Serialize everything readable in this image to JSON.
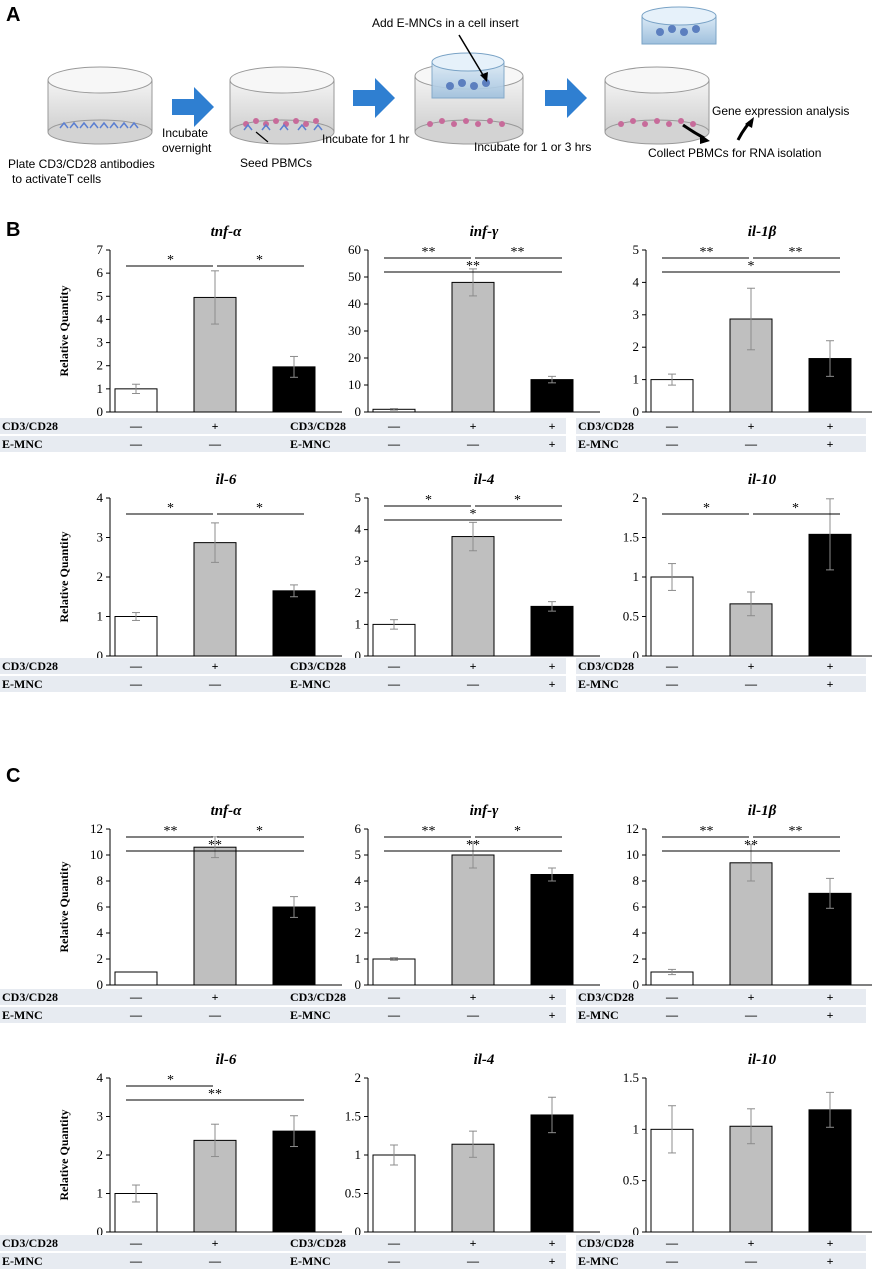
{
  "figure": {
    "panel_a": {
      "label": "A",
      "steps": [
        "Plate CD3/CD28  antibodies",
        "to activateT cells",
        "Incubate",
        "overnight",
        "Seed PBMCs",
        "Incubate for 1 hr",
        "Add E-MNCs  in a cell insert",
        "Incubate for 1 or 3 hrs",
        "Gene expression analysis",
        "Collect PBMCs  for RNA isolation"
      ]
    },
    "panel_b": {
      "label": "B"
    },
    "panel_c": {
      "label": "C"
    }
  },
  "conditions": {
    "rows": [
      "CD3/CD28",
      "E-MNC"
    ],
    "cd3": [
      "—",
      "+",
      "+"
    ],
    "emnc": [
      "—",
      "—",
      "+"
    ]
  },
  "colors": {
    "bar_fills": [
      "#ffffff",
      "#bfbfbf",
      "#000000"
    ],
    "error": "#8c8c8c",
    "cond_bg": "#e7ebf1"
  },
  "chart_data": [
    {
      "panel": "B",
      "type": "bar",
      "title": "tnf-α",
      "ylabel": "Relative Quantity",
      "ylim": [
        0,
        7
      ],
      "ticks": [
        "0",
        "1",
        "2",
        "3",
        "4",
        "5",
        "6",
        "7"
      ],
      "values": [
        1.0,
        4.95,
        1.95
      ],
      "errors": [
        0.2,
        1.15,
        0.45
      ],
      "sig": [
        {
          "from": 0,
          "to": 1,
          "label": "*"
        },
        {
          "from": 1,
          "to": 2,
          "label": "*"
        }
      ]
    },
    {
      "panel": "B",
      "type": "bar",
      "title": "inf-γ",
      "ylabel": "",
      "ylim": [
        0,
        60
      ],
      "ticks": [
        "0",
        "10",
        "20",
        "30",
        "40",
        "50",
        "60"
      ],
      "values": [
        1.0,
        48.0,
        12.0
      ],
      "errors": [
        0.3,
        5.0,
        1.2
      ],
      "sig": [
        {
          "from": 0,
          "to": 1,
          "label": "**"
        },
        {
          "from": 1,
          "to": 2,
          "label": "**"
        },
        {
          "from": 0,
          "to": 2,
          "label": "**"
        }
      ]
    },
    {
      "panel": "B",
      "type": "bar",
      "title": "il-1β",
      "ylabel": "",
      "ylim": [
        0,
        5
      ],
      "ticks": [
        "0",
        "1",
        "2",
        "3",
        "4",
        "5"
      ],
      "values": [
        1.0,
        2.87,
        1.65
      ],
      "errors": [
        0.17,
        0.95,
        0.55
      ],
      "sig": [
        {
          "from": 0,
          "to": 1,
          "label": "**"
        },
        {
          "from": 1,
          "to": 2,
          "label": "**"
        },
        {
          "from": 0,
          "to": 2,
          "label": "*"
        }
      ]
    },
    {
      "panel": "B",
      "type": "bar",
      "title": "il-6",
      "ylabel": "Relative Quantity",
      "ylim": [
        0,
        4
      ],
      "ticks": [
        "0",
        "1",
        "2",
        "3",
        "4"
      ],
      "values": [
        1.0,
        2.87,
        1.65
      ],
      "errors": [
        0.1,
        0.5,
        0.15
      ],
      "sig": [
        {
          "from": 0,
          "to": 1,
          "label": "*"
        },
        {
          "from": 1,
          "to": 2,
          "label": "*"
        }
      ]
    },
    {
      "panel": "B",
      "type": "bar",
      "title": "il-4",
      "ylabel": "",
      "ylim": [
        0,
        5
      ],
      "ticks": [
        "0",
        "1",
        "2",
        "3",
        "4",
        "5"
      ],
      "values": [
        1.0,
        3.78,
        1.57
      ],
      "errors": [
        0.15,
        0.45,
        0.15
      ],
      "sig": [
        {
          "from": 0,
          "to": 1,
          "label": "*"
        },
        {
          "from": 1,
          "to": 2,
          "label": "*"
        },
        {
          "from": 0,
          "to": 2,
          "label": "*"
        }
      ]
    },
    {
      "panel": "B",
      "type": "bar",
      "title": "il-10",
      "ylabel": "",
      "ylim": [
        0,
        2
      ],
      "ticks": [
        "0",
        "0.5",
        "1",
        "1.5",
        "2"
      ],
      "values": [
        1.0,
        0.66,
        1.54
      ],
      "errors": [
        0.17,
        0.15,
        0.45
      ],
      "sig": [
        {
          "from": 0,
          "to": 1,
          "label": "*"
        },
        {
          "from": 1,
          "to": 2,
          "label": "*"
        }
      ]
    },
    {
      "panel": "C",
      "type": "bar",
      "title": "tnf-α",
      "ylabel": "Relative Quantity",
      "ylim": [
        0,
        12
      ],
      "ticks": [
        "0",
        "2",
        "4",
        "6",
        "8",
        "10",
        "12"
      ],
      "values": [
        1.0,
        10.6,
        6.0
      ],
      "errors": [
        0.0,
        0.8,
        0.8
      ],
      "sig": [
        {
          "from": 0,
          "to": 1,
          "label": "**"
        },
        {
          "from": 1,
          "to": 2,
          "label": "*"
        },
        {
          "from": 0,
          "to": 2,
          "label": "**"
        }
      ]
    },
    {
      "panel": "C",
      "type": "bar",
      "title": "inf-γ",
      "ylabel": "",
      "ylim": [
        0,
        6
      ],
      "ticks": [
        "0",
        "1",
        "2",
        "3",
        "4",
        "5",
        "6"
      ],
      "values": [
        1.0,
        5.0,
        4.25
      ],
      "errors": [
        0.05,
        0.5,
        0.25
      ],
      "sig": [
        {
          "from": 0,
          "to": 1,
          "label": "**"
        },
        {
          "from": 1,
          "to": 2,
          "label": "*"
        },
        {
          "from": 0,
          "to": 2,
          "label": "**"
        }
      ]
    },
    {
      "panel": "C",
      "type": "bar",
      "title": "il-1β",
      "ylabel": "",
      "ylim": [
        0,
        12
      ],
      "ticks": [
        "0",
        "2",
        "4",
        "6",
        "8",
        "10",
        "12"
      ],
      "values": [
        1.0,
        9.4,
        7.05
      ],
      "errors": [
        0.2,
        1.4,
        1.15
      ],
      "sig": [
        {
          "from": 0,
          "to": 1,
          "label": "**"
        },
        {
          "from": 1,
          "to": 2,
          "label": "**"
        },
        {
          "from": 0,
          "to": 2,
          "label": "**"
        }
      ]
    },
    {
      "panel": "C",
      "type": "bar",
      "title": "il-6",
      "ylabel": "Relative Quantity",
      "ylim": [
        0,
        4
      ],
      "ticks": [
        "0",
        "1",
        "2",
        "3",
        "4"
      ],
      "values": [
        1.0,
        2.38,
        2.62
      ],
      "errors": [
        0.22,
        0.42,
        0.4
      ],
      "sig": [
        {
          "from": 0,
          "to": 1,
          "label": "*"
        },
        {
          "from": 0,
          "to": 2,
          "label": "**"
        }
      ]
    },
    {
      "panel": "C",
      "type": "bar",
      "title": "il-4",
      "ylabel": "",
      "ylim": [
        0,
        2
      ],
      "ticks": [
        "0",
        "0.5",
        "1",
        "1.5",
        "2"
      ],
      "values": [
        1.0,
        1.14,
        1.52
      ],
      "errors": [
        0.13,
        0.17,
        0.23
      ],
      "sig": []
    },
    {
      "panel": "C",
      "type": "bar",
      "title": "il-10",
      "ylabel": "",
      "ylim": [
        0,
        1.5
      ],
      "ticks": [
        "0",
        "0.5",
        "1",
        "1.5"
      ],
      "values": [
        1.0,
        1.03,
        1.19
      ],
      "errors": [
        0.23,
        0.17,
        0.17
      ],
      "sig": []
    }
  ]
}
